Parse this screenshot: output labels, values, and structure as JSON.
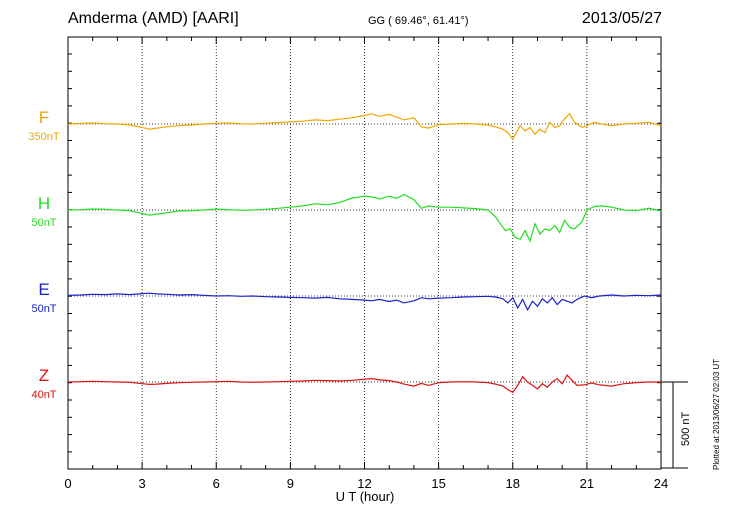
{
  "header": {
    "station": "Amderma (AMD)  [AARI]",
    "coords": "GG ( 69.46°,  61.41°)",
    "date": "2013/05/27"
  },
  "footer": {
    "plotted": "Plotted at 2013/06/27 02:03 UT",
    "scale_bar": "500 nT"
  },
  "chart_data": {
    "type": "line",
    "title": "Amderma (AMD)  [AARI]",
    "xlabel": "U T (hour)",
    "xlim": [
      0,
      24
    ],
    "xticks": [
      "0",
      "3",
      "6",
      "9",
      "12",
      "15",
      "18",
      "21",
      "24"
    ],
    "grid": true,
    "scale_bar_nT": 500,
    "series": [
      {
        "name": "F",
        "scale": "350nT",
        "color": "#f0a800",
        "baseline_index": 0,
        "x": [
          0,
          0.5,
          1,
          1.5,
          2,
          2.5,
          3,
          3.3,
          3.6,
          4,
          4.5,
          5,
          5.5,
          6,
          6.5,
          7,
          7.5,
          8,
          8.5,
          9,
          9.5,
          10,
          10.5,
          11,
          11.5,
          12,
          12.3,
          12.6,
          13,
          13.3,
          13.6,
          14,
          14.3,
          14.6,
          15,
          15.5,
          16,
          16.5,
          17,
          17.3,
          17.6,
          17.8,
          18,
          18.1,
          18.3,
          18.5,
          18.7,
          18.9,
          19.1,
          19.3,
          19.5,
          19.7,
          19.9,
          20.1,
          20.3,
          20.5,
          20.8,
          21,
          21.3,
          21.6,
          22,
          22.5,
          23,
          23.5,
          24
        ],
        "values": [
          0,
          2,
          3,
          1,
          0,
          -3,
          -10,
          -15,
          -12,
          -8,
          -5,
          -3,
          0,
          2,
          3,
          1,
          0,
          2,
          4,
          6,
          8,
          12,
          10,
          14,
          18,
          25,
          30,
          22,
          28,
          20,
          12,
          18,
          -8,
          -12,
          -2,
          0,
          2,
          0,
          -3,
          -8,
          -15,
          -25,
          -45,
          -30,
          -5,
          -20,
          -10,
          -30,
          -15,
          -25,
          5,
          -10,
          -5,
          15,
          30,
          5,
          -10,
          -5,
          5,
          0,
          -5,
          0,
          2,
          5,
          -5
        ]
      },
      {
        "name": "H",
        "scale": "50nT",
        "color": "#22dd22",
        "baseline_index": 1,
        "x": [
          0,
          0.5,
          1,
          1.5,
          2,
          2.5,
          3,
          3.3,
          3.6,
          4,
          4.5,
          5,
          5.5,
          6,
          6.5,
          7,
          7.5,
          8,
          8.5,
          9,
          9.5,
          10,
          10.5,
          11,
          11.5,
          12,
          12.3,
          12.6,
          13,
          13.3,
          13.6,
          14,
          14.3,
          14.6,
          15,
          15.5,
          16,
          16.5,
          17,
          17.3,
          17.5,
          17.7,
          17.9,
          18.1,
          18.3,
          18.5,
          18.7,
          18.9,
          19.1,
          19.3,
          19.5,
          19.7,
          19.9,
          20.1,
          20.3,
          20.5,
          20.8,
          21,
          21.3,
          21.6,
          22,
          22.5,
          23,
          23.5,
          24
        ],
        "values": [
          0,
          1,
          3,
          2,
          0,
          -2,
          -10,
          -15,
          -12,
          -8,
          -3,
          -2,
          0,
          3,
          1,
          -1,
          0,
          2,
          5,
          8,
          12,
          18,
          15,
          22,
          35,
          40,
          38,
          32,
          40,
          34,
          45,
          30,
          5,
          12,
          8,
          8,
          6,
          4,
          0,
          -20,
          -40,
          -60,
          -55,
          -80,
          -85,
          -60,
          -90,
          -40,
          -70,
          -55,
          -60,
          -45,
          -65,
          -30,
          -50,
          -55,
          -35,
          0,
          10,
          12,
          8,
          0,
          -2,
          5,
          -3
        ]
      },
      {
        "name": "E",
        "scale": "50nT",
        "color": "#1a22cc",
        "baseline_index": 2,
        "x": [
          0,
          0.5,
          1,
          1.5,
          2,
          2.5,
          3,
          3.3,
          3.6,
          4,
          4.5,
          5,
          5.5,
          6,
          6.5,
          7,
          7.5,
          8,
          8.5,
          9,
          9.5,
          10,
          10.5,
          11,
          11.5,
          12,
          12.3,
          12.6,
          13,
          13.3,
          13.6,
          14,
          14.3,
          14.6,
          15,
          15.5,
          16,
          16.5,
          17,
          17.3,
          17.6,
          17.8,
          18,
          18.2,
          18.4,
          18.6,
          18.8,
          19,
          19.2,
          19.4,
          19.6,
          19.8,
          20,
          20.2,
          20.4,
          20.6,
          20.9,
          21.2,
          21.5,
          22,
          22.5,
          23,
          23.5,
          24
        ],
        "values": [
          2,
          3,
          5,
          4,
          6,
          4,
          7,
          8,
          6,
          5,
          3,
          4,
          2,
          0,
          1,
          -1,
          0,
          -2,
          -3,
          -4,
          -5,
          -6,
          -4,
          -8,
          -10,
          -12,
          -14,
          -10,
          -16,
          -12,
          -20,
          -14,
          -5,
          -8,
          -6,
          -5,
          -3,
          -2,
          -1,
          -3,
          -8,
          -20,
          -5,
          -35,
          -10,
          -40,
          -15,
          -30,
          -8,
          -20,
          -5,
          -25,
          -10,
          -15,
          -20,
          -10,
          0,
          -5,
          0,
          3,
          0,
          2,
          1,
          3
        ]
      },
      {
        "name": "Z",
        "scale": "40nT",
        "color": "#dd1111",
        "baseline_index": 3,
        "x": [
          0,
          0.5,
          1,
          1.5,
          2,
          2.5,
          3,
          3.3,
          3.6,
          4,
          4.5,
          5,
          5.5,
          6,
          6.5,
          7,
          7.5,
          8,
          8.5,
          9,
          9.5,
          10,
          10.5,
          11,
          11.5,
          12,
          12.3,
          12.6,
          13,
          13.3,
          13.6,
          14,
          14.3,
          14.6,
          15,
          15.5,
          16,
          16.5,
          17,
          17.3,
          17.6,
          17.8,
          18,
          18.2,
          18.4,
          18.6,
          18.8,
          19,
          19.2,
          19.4,
          19.6,
          19.8,
          20,
          20.2,
          20.4,
          20.6,
          20.9,
          21.2,
          21.5,
          22,
          22.5,
          23,
          23.5,
          24
        ],
        "values": [
          0,
          1,
          2,
          1,
          0,
          -1,
          -5,
          -7,
          -6,
          -4,
          -2,
          -1,
          0,
          1,
          2,
          0,
          -1,
          0,
          1,
          2,
          3,
          5,
          4,
          3,
          5,
          8,
          10,
          6,
          4,
          0,
          -6,
          -12,
          -4,
          -10,
          -2,
          0,
          1,
          0,
          -2,
          -6,
          -12,
          -22,
          -30,
          -10,
          15,
          0,
          -10,
          -20,
          -5,
          -15,
          0,
          10,
          -5,
          20,
          5,
          -10,
          -8,
          -3,
          -8,
          -12,
          -5,
          -2,
          0,
          0
        ]
      }
    ]
  }
}
